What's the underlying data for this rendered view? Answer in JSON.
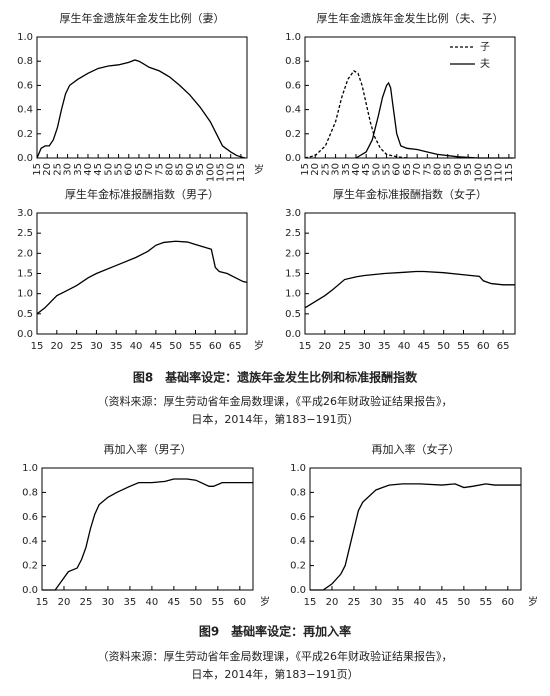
{
  "chart_data": [
    {
      "type": "line",
      "title": "厚生年金遗族年金发生比例（妻）",
      "xlabel": "岁",
      "xlim": [
        15,
        118
      ],
      "ylim": [
        0,
        1
      ],
      "xticks": [
        15,
        20,
        25,
        30,
        35,
        40,
        45,
        50,
        55,
        60,
        65,
        70,
        75,
        80,
        85,
        90,
        95,
        100,
        105,
        110,
        115
      ],
      "yticks": [
        {
          "value": 0,
          "label": "0.0"
        },
        0.2,
        0.4,
        0.6,
        0.8,
        {
          "value": 1,
          "label": "1.0"
        }
      ],
      "tick_rotation": true,
      "color": "#000000",
      "x": [
        15,
        17,
        19,
        21,
        23,
        25,
        27,
        29,
        31,
        35,
        40,
        45,
        50,
        55,
        60,
        63,
        65,
        67,
        70,
        75,
        80,
        85,
        90,
        95,
        100,
        103,
        106,
        110,
        113,
        117
      ],
      "values": [
        0,
        0.08,
        0.1,
        0.1,
        0.15,
        0.25,
        0.4,
        0.53,
        0.6,
        0.65,
        0.7,
        0.74,
        0.76,
        0.77,
        0.79,
        0.81,
        0.8,
        0.78,
        0.75,
        0.72,
        0.67,
        0.6,
        0.52,
        0.42,
        0.3,
        0.2,
        0.1,
        0.05,
        0.02,
        0
      ]
    },
    {
      "type": "line",
      "title": "厚生年金遗族年金发生比例（夫、子）",
      "xlim": [
        15,
        118
      ],
      "ylim": [
        0,
        1
      ],
      "xticks": [
        15,
        20,
        25,
        30,
        35,
        40,
        45,
        50,
        55,
        60,
        65,
        70,
        75,
        80,
        85,
        90,
        95,
        100,
        105,
        110,
        115
      ],
      "yticks": [
        {
          "value": 0,
          "label": "0.0"
        },
        0.2,
        0.4,
        0.6,
        0.8,
        {
          "value": 1,
          "label": "1.0"
        }
      ],
      "tick_rotation": true,
      "series": [
        {
          "name": "子",
          "color": "#000000",
          "style": "dashed",
          "x": [
            15,
            20,
            25,
            30,
            33,
            36,
            39,
            41,
            43,
            45,
            47,
            49,
            52,
            55,
            60,
            65
          ],
          "values": [
            0,
            0.02,
            0.1,
            0.3,
            0.5,
            0.65,
            0.72,
            0.7,
            0.6,
            0.45,
            0.3,
            0.18,
            0.08,
            0.03,
            0.01,
            0
          ]
        },
        {
          "name": "夫",
          "color": "#000000",
          "style": "solid",
          "x": [
            40,
            45,
            48,
            51,
            53,
            55,
            56,
            57,
            58,
            60,
            62,
            65,
            70,
            75,
            80,
            90,
            100,
            117
          ],
          "values": [
            0,
            0.05,
            0.15,
            0.35,
            0.5,
            0.6,
            0.62,
            0.58,
            0.45,
            0.2,
            0.1,
            0.08,
            0.07,
            0.05,
            0.03,
            0.01,
            0,
            0
          ]
        }
      ]
    },
    {
      "type": "line",
      "title": "厚生年金标准报酬指数（男子）",
      "xlabel": "岁",
      "xlim": [
        15,
        68
      ],
      "ylim": [
        0,
        3
      ],
      "xticks": [
        15,
        20,
        25,
        30,
        35,
        40,
        45,
        50,
        55,
        60,
        65
      ],
      "yticks": [
        {
          "value": 0,
          "label": "0.0"
        },
        0.5,
        {
          "value": 1,
          "label": "1.0"
        },
        1.5,
        {
          "value": 2,
          "label": "2.0"
        },
        2.5,
        {
          "value": 3,
          "label": "3.0"
        }
      ],
      "color": "#000000",
      "x": [
        15,
        17,
        20,
        22,
        25,
        28,
        30,
        35,
        40,
        43,
        45,
        47,
        50,
        53,
        55,
        59,
        60,
        61,
        63,
        65,
        67,
        68
      ],
      "values": [
        0.5,
        0.65,
        0.95,
        1.05,
        1.2,
        1.4,
        1.5,
        1.7,
        1.9,
        2.05,
        2.2,
        2.27,
        2.3,
        2.28,
        2.22,
        2.1,
        1.65,
        1.55,
        1.5,
        1.4,
        1.3,
        1.28
      ]
    },
    {
      "type": "line",
      "title": "厚生年金标准报酬指数（女子）",
      "xlim": [
        15,
        68
      ],
      "ylim": [
        0,
        3
      ],
      "xticks": [
        15,
        20,
        25,
        30,
        35,
        40,
        45,
        50,
        55,
        60,
        65
      ],
      "yticks": [
        {
          "value": 0,
          "label": "0.0"
        },
        0.5,
        {
          "value": 1,
          "label": "1.0"
        },
        1.5,
        {
          "value": 2,
          "label": "2.0"
        },
        2.5,
        {
          "value": 3,
          "label": "3.0"
        }
      ],
      "color": "#000000",
      "x": [
        15,
        20,
        22,
        25,
        28,
        30,
        35,
        40,
        43,
        45,
        50,
        55,
        59,
        60,
        62,
        65,
        68
      ],
      "values": [
        0.65,
        0.95,
        1.1,
        1.35,
        1.42,
        1.45,
        1.5,
        1.53,
        1.55,
        1.55,
        1.52,
        1.47,
        1.43,
        1.32,
        1.25,
        1.22,
        1.22
      ]
    },
    {
      "type": "line",
      "title": "再加入率（男子）",
      "xlabel": "岁",
      "xlim": [
        15,
        63
      ],
      "ylim": [
        0,
        1
      ],
      "xticks": [
        15,
        20,
        25,
        30,
        35,
        40,
        45,
        50,
        55,
        60
      ],
      "yticks": [
        {
          "value": 0,
          "label": "0.0"
        },
        0.2,
        0.4,
        0.6,
        0.8,
        {
          "value": 1,
          "label": "1.0"
        }
      ],
      "color": "#000000",
      "x": [
        15,
        18,
        20,
        21,
        23,
        24,
        25,
        26,
        27,
        28,
        30,
        32,
        35,
        37,
        40,
        43,
        45,
        48,
        50,
        53,
        54,
        56,
        60,
        63
      ],
      "values": [
        0,
        0,
        0.1,
        0.15,
        0.18,
        0.25,
        0.35,
        0.5,
        0.62,
        0.7,
        0.76,
        0.8,
        0.85,
        0.88,
        0.88,
        0.89,
        0.91,
        0.91,
        0.9,
        0.85,
        0.85,
        0.88,
        0.88,
        0.88
      ]
    },
    {
      "type": "line",
      "title": "再加入率（女子）",
      "xlabel": "岁",
      "xlim": [
        15,
        63
      ],
      "ylim": [
        0,
        1
      ],
      "xticks": [
        15,
        20,
        25,
        30,
        35,
        40,
        45,
        50,
        55,
        60
      ],
      "yticks": [
        {
          "value": 0,
          "label": "0.0"
        },
        0.2,
        0.4,
        0.6,
        0.8,
        {
          "value": 1,
          "label": "1.0"
        }
      ],
      "color": "#000000",
      "x": [
        15,
        18,
        20,
        22,
        23,
        24,
        25,
        26,
        27,
        30,
        33,
        36,
        40,
        45,
        48,
        50,
        52,
        55,
        57,
        60,
        63
      ],
      "values": [
        0,
        0,
        0.05,
        0.13,
        0.2,
        0.35,
        0.5,
        0.65,
        0.72,
        0.82,
        0.86,
        0.87,
        0.87,
        0.86,
        0.87,
        0.84,
        0.85,
        0.87,
        0.86,
        0.86,
        0.86
      ]
    }
  ],
  "captions": [
    {
      "title": "图8　基础率设定：遗族年金发生比例和标准报酬指数",
      "source": [
        "（资料来源：厚生劳动省年金局数理课，《平成26年财政验证结果报告》，",
        "日本，2014年，第183−191页）"
      ]
    },
    {
      "title": "图9　基础率设定：再加入率",
      "source": [
        "（资料来源：厚生劳动省年金局数理课，《平成26年财政验证结果报告》，",
        "日本，2014年，第183−191页）"
      ]
    }
  ]
}
